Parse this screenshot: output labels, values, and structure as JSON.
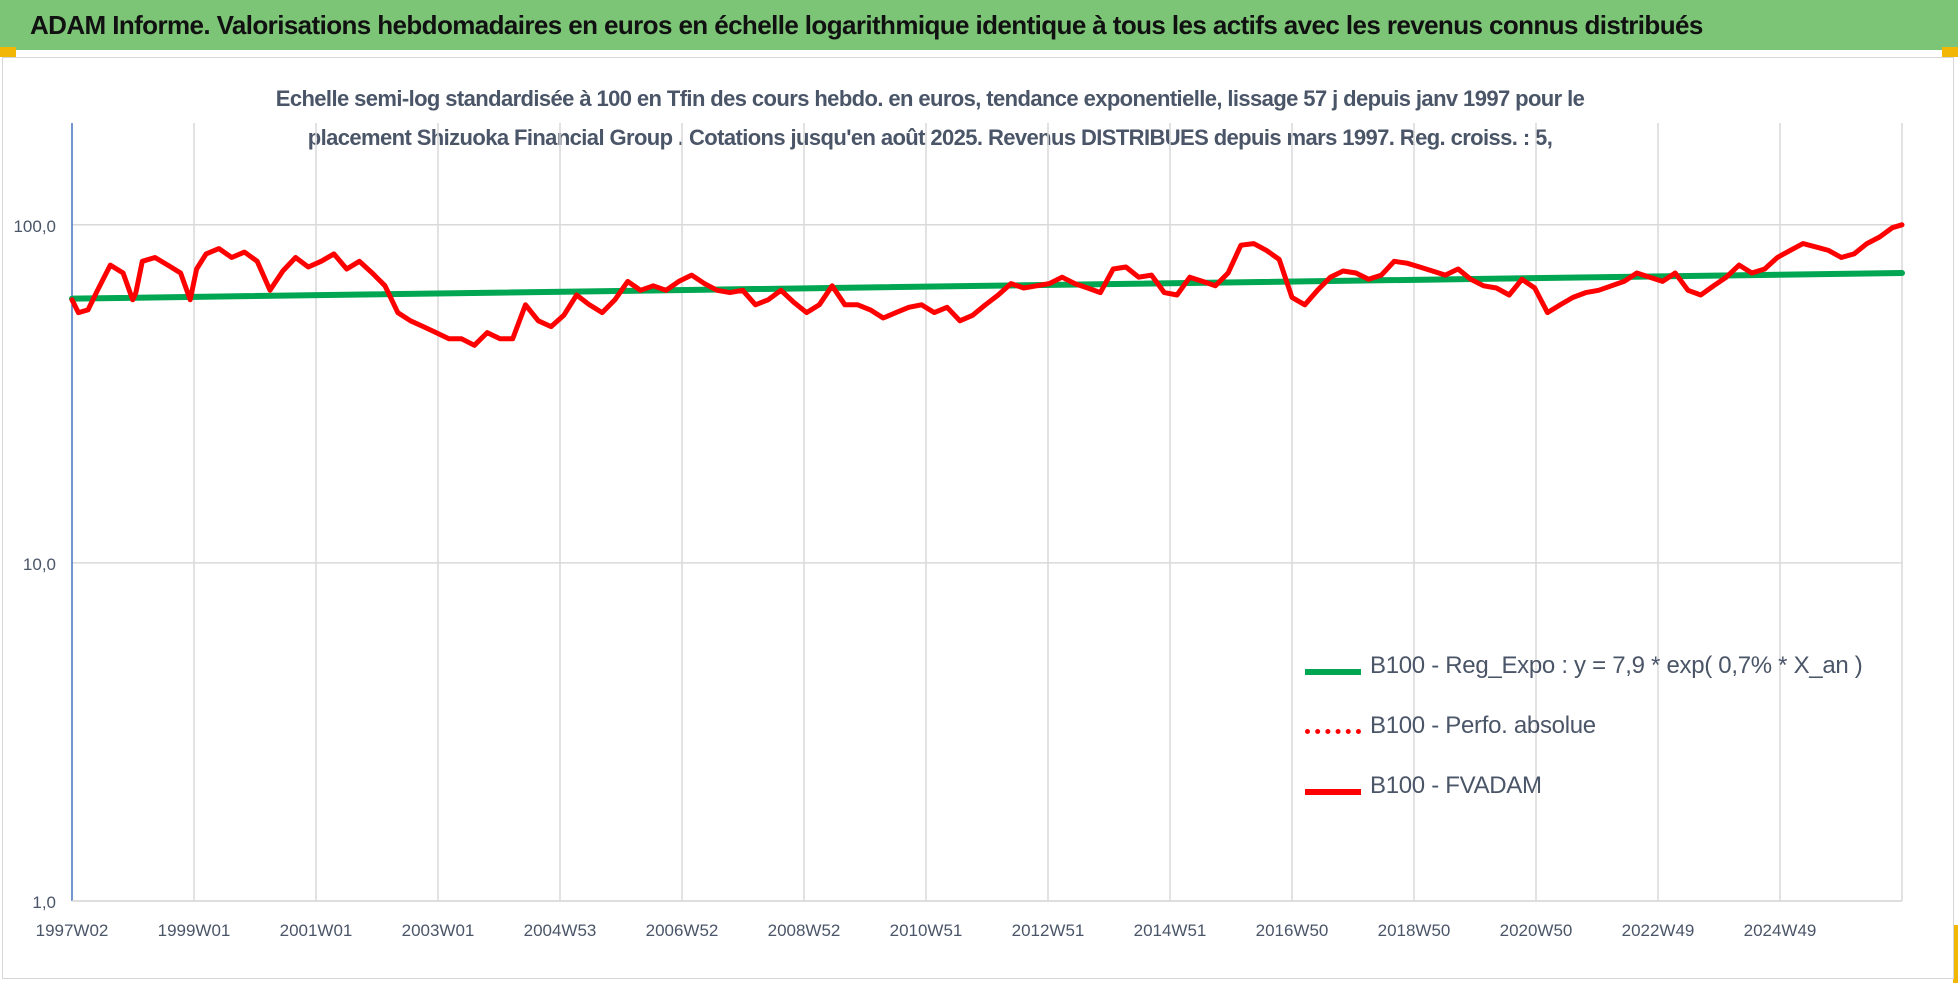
{
  "header": {
    "banner_title": "ADAM Informe. Valorisations hebdomadaires en euros en échelle logarithmique identique à tous les actifs avec les revenus connus distribués"
  },
  "chart_data": {
    "type": "line",
    "title_line1": "Echelle semi-log standardisée à 100 en Tfin des cours hebdo. en euros, tendance exponentielle, lissage 57 j depuis janv 1997 pour le",
    "title_line2": "placement Shizuoka Financial Group . Cotations jusqu'en août 2025. Revenus DISTRIBUES depuis mars 1997. Reg. croiss. : 5,",
    "y_scale": "log",
    "ylim": [
      1,
      200
    ],
    "y_ticks": [
      1,
      10,
      100
    ],
    "y_tick_labels": [
      "1,0",
      "10,0",
      "100,0"
    ],
    "x_tick_labels": [
      "1997W02",
      "1999W01",
      "2001W01",
      "2003W01",
      "2004W53",
      "2006W52",
      "2008W52",
      "2010W51",
      "2012W51",
      "2014W51",
      "2016W50",
      "2018W50",
      "2020W50",
      "2022W49",
      "2024W49"
    ],
    "x_range": [
      1997.0,
      2025.65
    ],
    "grid": true,
    "legend_position": "bottom-right",
    "series": [
      {
        "name": "B100 - Reg_Expo : y = 7,9 * exp( 0,7% *  X_an )",
        "color": "#00a651",
        "style": "solid",
        "x": [
          1997.0,
          2025.65
        ],
        "values": [
          60.5,
          72.0
        ]
      },
      {
        "name": "B100 - Perfo. absolue",
        "color": "#ff0000",
        "style": "dotted",
        "x": [],
        "values": []
      },
      {
        "name": "B100 - FVADAM",
        "color": "#ff0000",
        "style": "solid",
        "x": [
          1997.0,
          1997.1,
          1997.25,
          1997.4,
          1997.6,
          1997.8,
          1997.95,
          1998.0,
          1998.1,
          1998.3,
          1998.5,
          1998.7,
          1998.85,
          1998.95,
          1999.1,
          1999.3,
          1999.5,
          1999.7,
          1999.9,
          2000.1,
          2000.3,
          2000.5,
          2000.7,
          2000.9,
          2001.1,
          2001.3,
          2001.5,
          2001.7,
          2001.9,
          2002.1,
          2002.3,
          2002.5,
          2002.7,
          2002.9,
          2003.1,
          2003.3,
          2003.5,
          2003.7,
          2003.9,
          2004.1,
          2004.3,
          2004.5,
          2004.7,
          2004.9,
          2005.1,
          2005.3,
          2005.5,
          2005.7,
          2005.9,
          2006.1,
          2006.3,
          2006.5,
          2006.7,
          2006.9,
          2007.1,
          2007.3,
          2007.5,
          2007.7,
          2007.9,
          2008.1,
          2008.3,
          2008.5,
          2008.7,
          2008.9,
          2009.1,
          2009.3,
          2009.5,
          2009.7,
          2009.9,
          2010.1,
          2010.3,
          2010.5,
          2010.7,
          2010.9,
          2011.1,
          2011.3,
          2011.5,
          2011.7,
          2011.9,
          2012.1,
          2012.3,
          2012.5,
          2012.7,
          2012.9,
          2013.1,
          2013.3,
          2013.5,
          2013.7,
          2013.9,
          2014.1,
          2014.3,
          2014.5,
          2014.7,
          2014.9,
          2015.1,
          2015.3,
          2015.5,
          2015.7,
          2015.9,
          2016.1,
          2016.3,
          2016.5,
          2016.7,
          2016.9,
          2017.1,
          2017.3,
          2017.5,
          2017.7,
          2017.9,
          2018.1,
          2018.3,
          2018.5,
          2018.7,
          2018.9,
          2019.1,
          2019.3,
          2019.5,
          2019.7,
          2019.9,
          2020.1,
          2020.3,
          2020.5,
          2020.7,
          2020.9,
          2021.1,
          2021.3,
          2021.5,
          2021.7,
          2021.9,
          2022.1,
          2022.3,
          2022.5,
          2022.7,
          2022.9,
          2023.1,
          2023.3,
          2023.5,
          2023.7,
          2023.9,
          2024.1,
          2024.3,
          2024.5,
          2024.7,
          2024.9,
          2025.1,
          2025.3,
          2025.5,
          2025.65
        ],
        "values": [
          60,
          55,
          56,
          64,
          76,
          72,
          60,
          63,
          78,
          80,
          76,
          72,
          60,
          74,
          82,
          85,
          80,
          83,
          78,
          64,
          73,
          80,
          75,
          78,
          82,
          74,
          78,
          72,
          66,
          55,
          52,
          50,
          48,
          46,
          46,
          44,
          48,
          46,
          46,
          58,
          52,
          50,
          54,
          62,
          58,
          55,
          60,
          68,
          64,
          66,
          64,
          68,
          71,
          67,
          64,
          63,
          64,
          58,
          60,
          64,
          59,
          55,
          58,
          66,
          58,
          58,
          56,
          53,
          55,
          57,
          58,
          55,
          57,
          52,
          54,
          58,
          62,
          67,
          65,
          66,
          67,
          70,
          67,
          65,
          63,
          74,
          75,
          70,
          71,
          63,
          62,
          70,
          68,
          66,
          72,
          87,
          88,
          84,
          79,
          61,
          58,
          64,
          70,
          73,
          72,
          69,
          71,
          78,
          77,
          75,
          73,
          71,
          74,
          69,
          66,
          65,
          62,
          69,
          65,
          55,
          58,
          61,
          63,
          64,
          66,
          68,
          72,
          70,
          68,
          72,
          64,
          62,
          66,
          70,
          76,
          72,
          74,
          80,
          84,
          88,
          86,
          84,
          80,
          82,
          88,
          92,
          98,
          100
        ]
      }
    ]
  }
}
